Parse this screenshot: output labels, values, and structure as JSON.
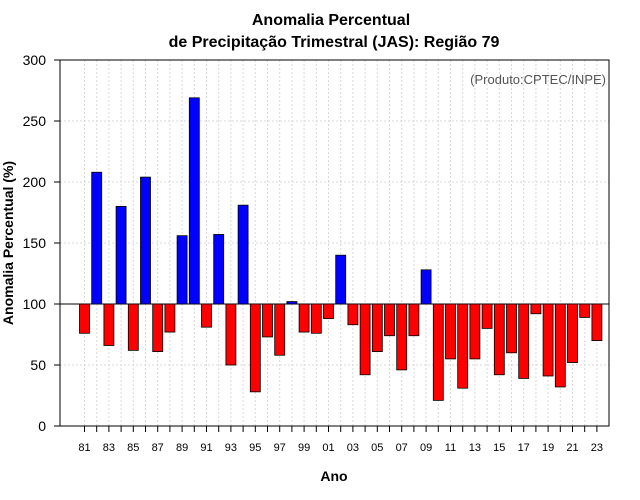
{
  "chart_data": {
    "type": "bar",
    "title": [
      "Anomalia Percentual",
      "de Precipitação Trimestral (JAS): Região 79"
    ],
    "xlabel": "Ano",
    "ylabel": "Anomalia Percentual (%)",
    "credit": "(Produto:CPTEC/INPE)",
    "baseline": 100,
    "ylim": [
      0,
      300
    ],
    "yticks": [
      0,
      50,
      100,
      150,
      200,
      250,
      300
    ],
    "categories": [
      "81",
      "82",
      "83",
      "84",
      "85",
      "86",
      "87",
      "88",
      "89",
      "90",
      "91",
      "92",
      "93",
      "94",
      "95",
      "96",
      "97",
      "98",
      "99",
      "00",
      "01",
      "02",
      "03",
      "04",
      "05",
      "06",
      "07",
      "08",
      "09",
      "10",
      "11",
      "12",
      "13",
      "14",
      "15",
      "16",
      "17",
      "18",
      "19",
      "20",
      "21",
      "22",
      "23"
    ],
    "xtick_labels": [
      "81",
      "83",
      "85",
      "87",
      "89",
      "91",
      "93",
      "95",
      "97",
      "99",
      "01",
      "03",
      "05",
      "07",
      "09",
      "11",
      "13",
      "15",
      "17",
      "19",
      "21",
      "23"
    ],
    "values": [
      76,
      208,
      66,
      180,
      62,
      204,
      61,
      77,
      156,
      269,
      81,
      157,
      50,
      181,
      28,
      73,
      58,
      102,
      77,
      76,
      88,
      140,
      83,
      42,
      61,
      74,
      46,
      74,
      128,
      21,
      55,
      31,
      55,
      80,
      42,
      60,
      39,
      92,
      41,
      32,
      52,
      89,
      70
    ],
    "colors": {
      "above": "#0000ff",
      "below": "#ff0000",
      "outline": "#000000"
    }
  }
}
